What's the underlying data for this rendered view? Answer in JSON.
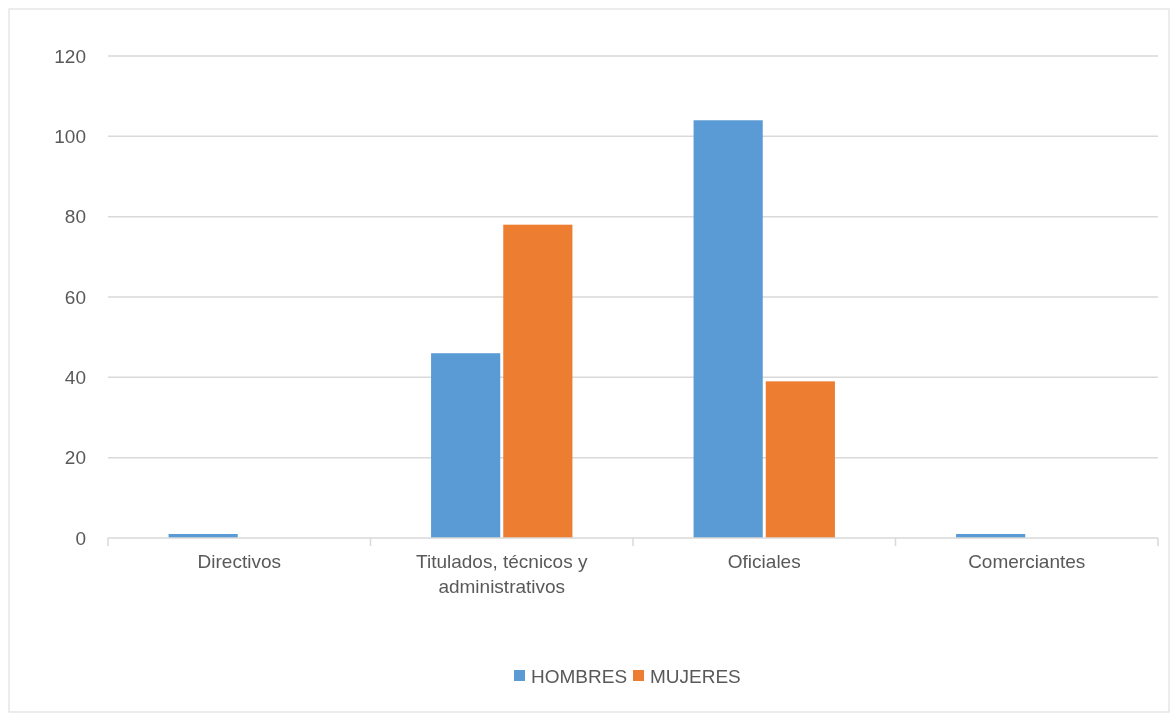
{
  "chart_data": {
    "type": "bar",
    "categories": [
      "Directivos",
      "Titulados, técnicos y administrativos",
      "Oficiales",
      "Comerciantes"
    ],
    "series": [
      {
        "name": "HOMBRES",
        "color": "#5b9bd5",
        "values": [
          1,
          46,
          104,
          1
        ]
      },
      {
        "name": "MUJERES",
        "color": "#ed7d31",
        "values": [
          0,
          78,
          39,
          0
        ]
      }
    ],
    "ylim": [
      0,
      120
    ],
    "yticks": [
      0,
      20,
      40,
      60,
      80,
      100,
      120
    ],
    "grid": "y",
    "legend": "bottom"
  }
}
